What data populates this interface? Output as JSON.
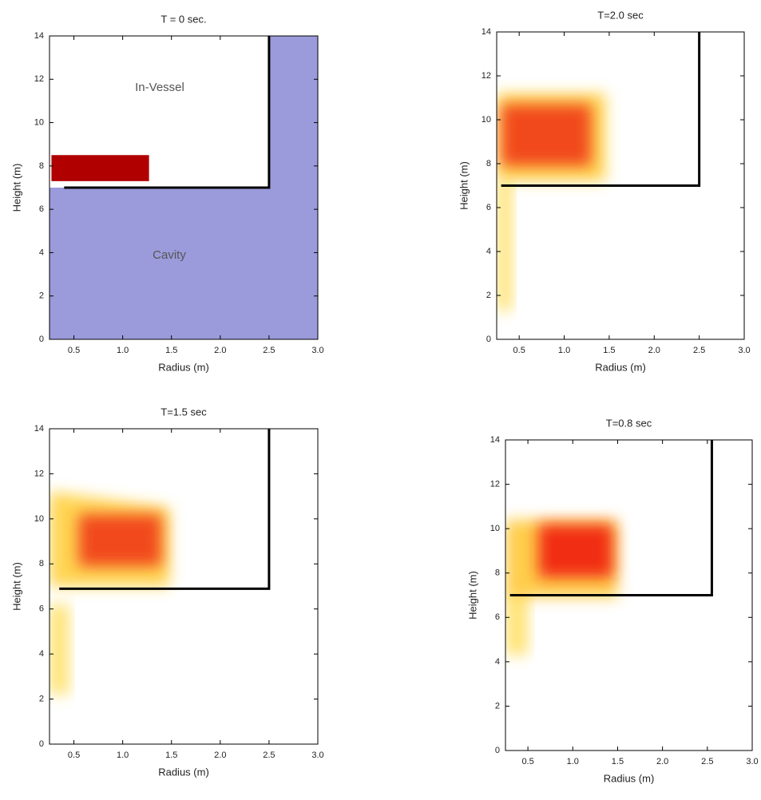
{
  "chart_data": [
    {
      "type": "region",
      "title": "T = 0 sec.",
      "xlabel": "Radius (m)",
      "ylabel": "Height (m)",
      "xlim": [
        0.25,
        3
      ],
      "ylim": [
        0,
        14
      ],
      "xticks": [
        0.5,
        {
          "value": 1,
          "label": "1.0"
        },
        1.5,
        {
          "value": 2,
          "label": "2.0"
        },
        2.5,
        {
          "value": 3,
          "label": "3.0"
        }
      ],
      "yticks": [
        0,
        2,
        4,
        6,
        8,
        10,
        12,
        14
      ],
      "annotations": [
        "In-Vessel",
        "Cavity"
      ],
      "regions": [
        {
          "x": [
            0.25,
            3,
            3,
            2.5,
            2.5,
            0.25
          ],
          "y": [
            0,
            0,
            14,
            14,
            7,
            7
          ],
          "color": "#9b9bdb",
          "blur": false
        },
        {
          "x": [
            0.27,
            1.27,
            1.27,
            0.27
          ],
          "y": [
            7.3,
            7.3,
            8.5,
            8.5
          ],
          "color": "#b00000",
          "blur": false
        }
      ],
      "wall": {
        "x": [
          0.4,
          2.5,
          2.5
        ],
        "y": [
          7,
          7,
          14
        ],
        "color": "#000000"
      }
    },
    {
      "type": "region",
      "title": "T=2.0 sec",
      "xlabel": "Radius (m)",
      "ylabel": "Height (m)",
      "xlim": [
        0.25,
        3
      ],
      "ylim": [
        0,
        14
      ],
      "xticks": [
        0.5,
        {
          "value": 1,
          "label": "1.0"
        },
        1.5,
        {
          "value": 2,
          "label": "2.0"
        },
        2.5,
        {
          "value": 3,
          "label": "3.0"
        }
      ],
      "yticks": [
        0,
        2,
        4,
        6,
        8,
        10,
        12,
        14
      ],
      "regions": [
        {
          "x": [
            0.25,
            0.42,
            0.42,
            0.25
          ],
          "y": [
            1.3,
            1.3,
            7.2,
            7.2
          ],
          "color": "#ffe066",
          "blur": true
        },
        {
          "x": [
            0.25,
            1.46,
            1.46,
            0.25
          ],
          "y": [
            7.2,
            7.2,
            11.2,
            11.2
          ],
          "color": "#ffd040",
          "blur": true
        },
        {
          "x": [
            0.3,
            1.3,
            1.3,
            0.3
          ],
          "y": [
            7.9,
            7.9,
            10.7,
            10.7
          ],
          "color": "#f03a18",
          "blur": true
        }
      ],
      "wall": {
        "x": [
          0.3,
          2.5,
          2.5
        ],
        "y": [
          7,
          7,
          14
        ],
        "color": "#000000"
      }
    },
    {
      "type": "region",
      "title": "T=1.5 sec",
      "xlabel": "Radius (m)",
      "ylabel": "Height (m)",
      "xlim": [
        0.25,
        3
      ],
      "ylim": [
        0,
        14
      ],
      "xticks": [
        0.5,
        {
          "value": 1,
          "label": "1.0"
        },
        1.5,
        {
          "value": 2,
          "label": "2.0"
        },
        2.5,
        {
          "value": 3,
          "label": "3.0"
        }
      ],
      "yticks": [
        0,
        2,
        4,
        6,
        8,
        10,
        12,
        14
      ],
      "regions": [
        {
          "x": [
            0.25,
            0.45,
            0.45,
            0.25
          ],
          "y": [
            2.2,
            2.2,
            6.2,
            6.2
          ],
          "color": "#ffe066",
          "blur": true
        },
        {
          "x": [
            0.25,
            1.48,
            1.48,
            0.25
          ],
          "y": [
            7,
            7,
            10.5,
            11.2
          ],
          "color": "#ffd040",
          "blur": true
        },
        {
          "x": [
            0.55,
            1.4,
            1.4,
            0.55
          ],
          "y": [
            7.9,
            7.9,
            10.2,
            10.2
          ],
          "color": "#f03a18",
          "blur": true
        }
      ],
      "wall": {
        "x": [
          0.35,
          2.5,
          2.5
        ],
        "y": [
          6.9,
          6.9,
          14
        ],
        "color": "#000000"
      }
    },
    {
      "type": "region",
      "title": "T=0.8 sec",
      "xlabel": "Radius (m)",
      "ylabel": "Height (m)",
      "xlim": [
        0.25,
        3
      ],
      "ylim": [
        0,
        14
      ],
      "xticks": [
        0.5,
        {
          "value": 1,
          "label": "1.0"
        },
        1.5,
        {
          "value": 2,
          "label": "2.0"
        },
        2.5,
        {
          "value": 3,
          "label": "3.0"
        }
      ],
      "yticks": [
        0,
        2,
        4,
        6,
        8,
        10,
        12,
        14
      ],
      "regions": [
        {
          "x": [
            0.25,
            0.5,
            0.5,
            0.25
          ],
          "y": [
            4.3,
            4.3,
            7.2,
            7.2
          ],
          "color": "#ffe066",
          "blur": true
        },
        {
          "x": [
            0.25,
            1.5,
            1.5,
            0.25
          ],
          "y": [
            6.9,
            6.9,
            10.4,
            10.4
          ],
          "color": "#ffc838",
          "blur": true
        },
        {
          "x": [
            0.62,
            1.45,
            1.45,
            0.62
          ],
          "y": [
            7.8,
            7.8,
            10.2,
            10.2
          ],
          "color": "#f01a10",
          "blur": true
        }
      ],
      "wall": {
        "x": [
          0.3,
          2.55,
          2.55
        ],
        "y": [
          7,
          7,
          14
        ],
        "color": "#000000"
      }
    }
  ]
}
